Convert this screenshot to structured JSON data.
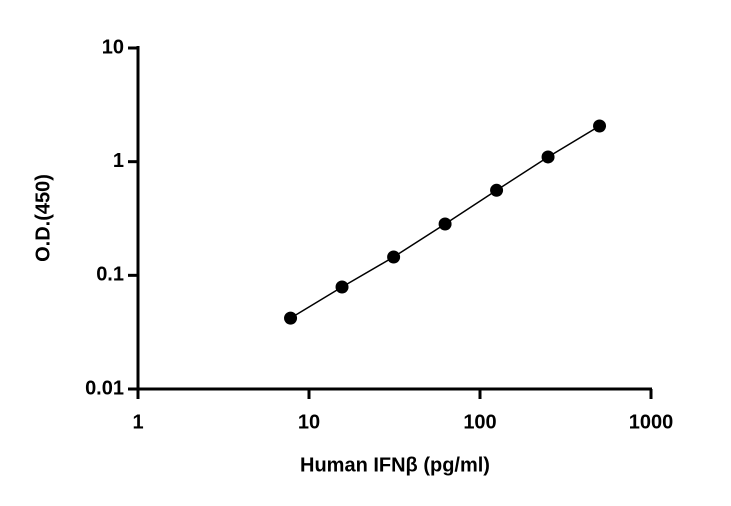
{
  "chart_data": {
    "type": "scatter",
    "x_label": "Human IFNβ (pg/ml)",
    "y_label": "O.D.(450)",
    "x": [
      7.8,
      15.6,
      31.25,
      62.5,
      125,
      250,
      500
    ],
    "series": [
      {
        "color": "#000000",
        "values": [
          0.042,
          0.079,
          0.145,
          0.283,
          0.56,
          1.1,
          2.06
        ]
      }
    ],
    "log_x": true,
    "log_y": true,
    "xlim": [
      1,
      1000
    ],
    "xticks": [
      1,
      10,
      100,
      1000
    ],
    "ylim": [
      0.01,
      10
    ],
    "yticks": [
      0.01,
      0.1,
      1,
      10
    ],
    "fit_line": true
  }
}
